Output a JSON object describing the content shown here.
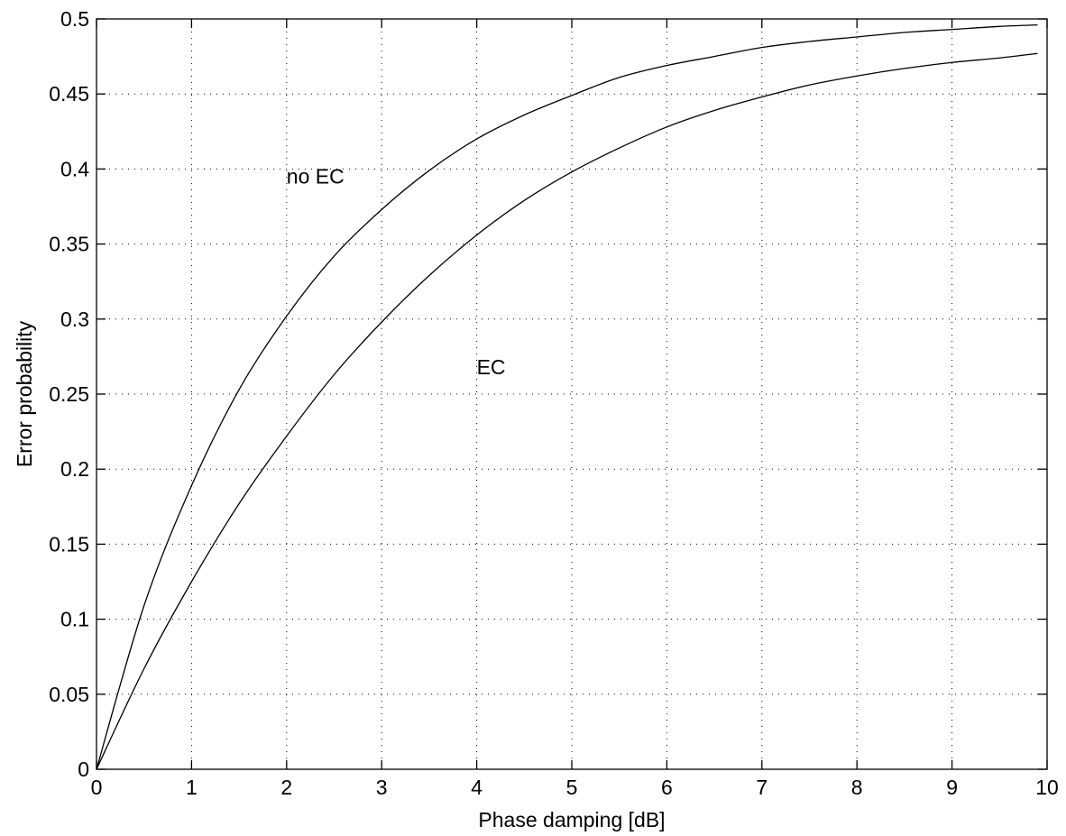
{
  "chart_data": {
    "type": "line",
    "title": "",
    "xlabel": "Phase damping [dB]",
    "ylabel": "Error probability",
    "xlim": [
      0,
      10
    ],
    "ylim": [
      0,
      0.5
    ],
    "xticks": [
      0,
      1,
      2,
      3,
      4,
      5,
      6,
      7,
      8,
      9,
      10
    ],
    "xtick_labels": [
      "0",
      "1",
      "2",
      "3",
      "4",
      "5",
      "6",
      "7",
      "8",
      "9",
      "10"
    ],
    "yticks": [
      0,
      0.05,
      0.1,
      0.15,
      0.2,
      0.25,
      0.3,
      0.35,
      0.4,
      0.45,
      0.5
    ],
    "ytick_labels": [
      "0",
      "0.05",
      "0.1",
      "0.15",
      "0.2",
      "0.25",
      "0.3",
      "0.35",
      "0.4",
      "0.45",
      "0.5"
    ],
    "grid": true,
    "line_color": "#000000",
    "series": [
      {
        "x": [
          0,
          0.5,
          1,
          1.5,
          2,
          2.5,
          3,
          3.5,
          4,
          4.5,
          5,
          5.5,
          6,
          6.5,
          7,
          7.5,
          8,
          8.5,
          9,
          9.5,
          9.9
        ],
        "y": [
          0,
          0.109,
          0.189,
          0.253,
          0.302,
          0.342,
          0.373,
          0.399,
          0.42,
          0.436,
          0.449,
          0.461,
          0.469,
          0.475,
          0.481,
          0.485,
          0.488,
          0.491,
          0.493,
          0.495,
          0.496
        ]
      },
      {
        "x": [
          0,
          0.5,
          1,
          1.5,
          2,
          2.5,
          3,
          3.5,
          4,
          4.5,
          5,
          5.5,
          6,
          6.5,
          7,
          7.5,
          8,
          8.5,
          9,
          9.5,
          9.9
        ],
        "y": [
          0,
          0.067,
          0.125,
          0.177,
          0.222,
          0.263,
          0.298,
          0.329,
          0.356,
          0.379,
          0.398,
          0.414,
          0.428,
          0.439,
          0.448,
          0.456,
          0.462,
          0.467,
          0.471,
          0.474,
          0.477
        ]
      }
    ],
    "annotations": [
      {
        "text": "no EC",
        "x": 2.0,
        "y": 0.395
      },
      {
        "text": "EC",
        "x": 4.0,
        "y": 0.268
      }
    ]
  }
}
